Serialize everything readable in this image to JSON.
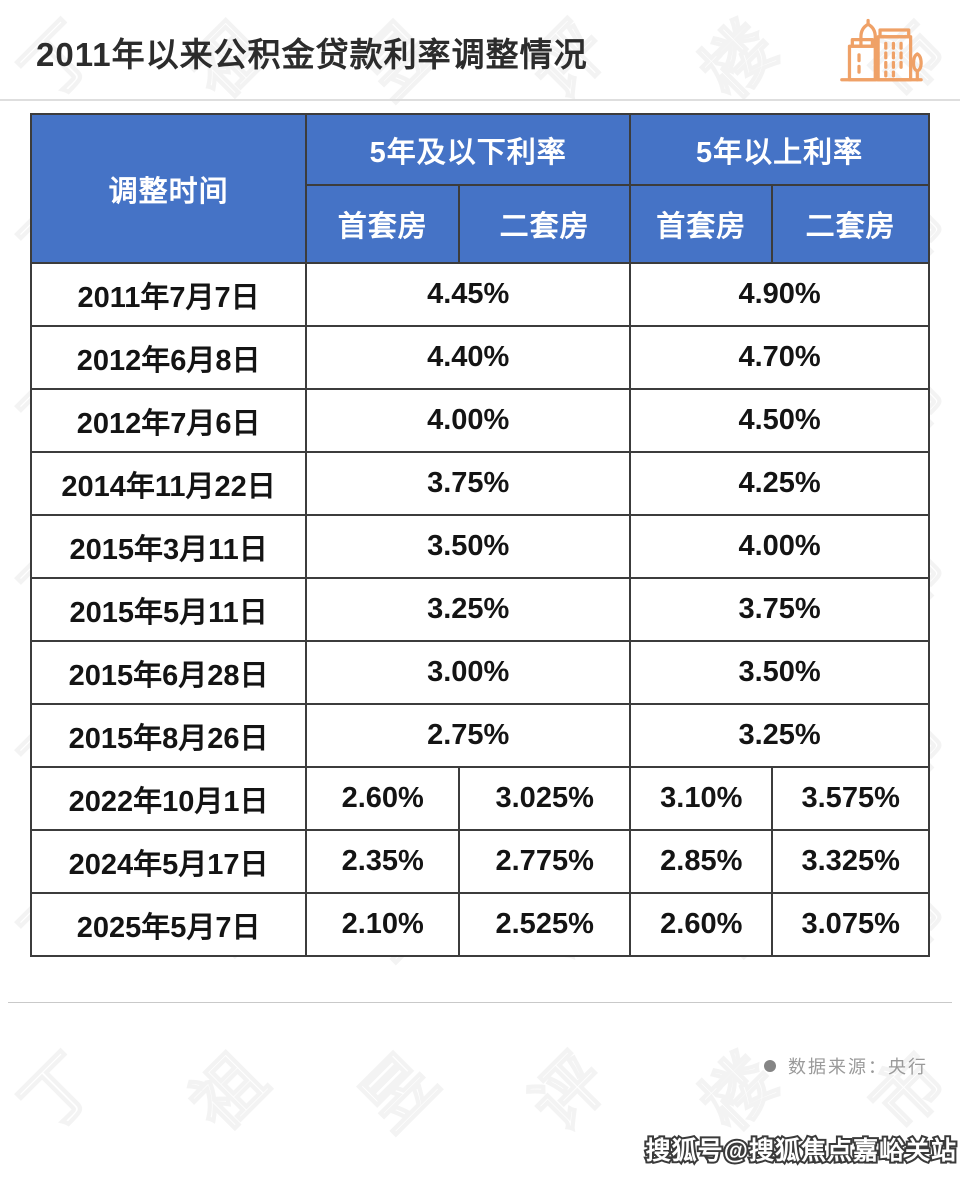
{
  "header": {
    "title": "2011年以来公积金贷款利率调整情况"
  },
  "table": {
    "header": {
      "col_time": "调整时间",
      "group_under5": "5年及以下利率",
      "group_over5": "5年以上利率",
      "sub_first": "首套房",
      "sub_second": "二套房"
    }
  },
  "chart_data": {
    "type": "table",
    "title": "2011年以来公积金贷款利率调整情况",
    "columns": [
      "调整时间",
      "5年及以下利率-首套房",
      "5年及以下利率-二套房",
      "5年以上利率-首套房",
      "5年以上利率-二套房"
    ],
    "rows": [
      [
        "2011年7月7日",
        "4.45%",
        "4.45%",
        "4.90%",
        "4.90%"
      ],
      [
        "2012年6月8日",
        "4.40%",
        "4.40%",
        "4.70%",
        "4.70%"
      ],
      [
        "2012年7月6日",
        "4.00%",
        "4.00%",
        "4.50%",
        "4.50%"
      ],
      [
        "2014年11月22日",
        "3.75%",
        "3.75%",
        "4.25%",
        "4.25%"
      ],
      [
        "2015年3月11日",
        "3.50%",
        "3.50%",
        "4.00%",
        "4.00%"
      ],
      [
        "2015年5月11日",
        "3.25%",
        "3.25%",
        "3.75%",
        "3.75%"
      ],
      [
        "2015年6月28日",
        "3.00%",
        "3.00%",
        "3.50%",
        "3.50%"
      ],
      [
        "2015年8月26日",
        "2.75%",
        "2.75%",
        "3.25%",
        "3.25%"
      ],
      [
        "2022年10月1日",
        "2.60%",
        "3.025%",
        "3.10%",
        "3.575%"
      ],
      [
        "2024年5月17日",
        "2.35%",
        "2.775%",
        "2.85%",
        "3.325%"
      ],
      [
        "2025年5月7日",
        "2.10%",
        "2.525%",
        "2.60%",
        "3.075%"
      ]
    ],
    "notes": "2011-2015年的行中首套房与二套房利率相同（单元格合并显示）"
  },
  "footer": {
    "source": "数据来源：央行",
    "sohu_tag": "搜狐号@搜狐焦点嘉峪关站"
  },
  "watermark": {
    "text": "丁祖昱评楼市",
    "count": 42
  },
  "colors": {
    "header_blue": "#4573c6",
    "grid_dark": "#3c3c3c",
    "icon_orange": "#efa167",
    "source_gray": "#9a9a9a"
  },
  "icons": {
    "buildings": "buildings-icon",
    "bullet": "bullet-dot-icon"
  }
}
